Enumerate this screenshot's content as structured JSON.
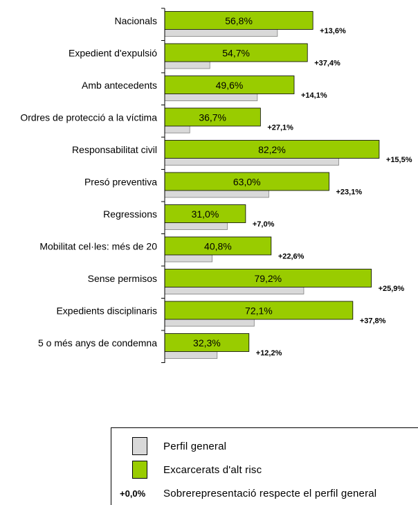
{
  "chart_data": {
    "type": "bar",
    "orientation": "horizontal",
    "categories": [
      "Nacionals",
      "Expedient d'expulsió",
      "Amb antecedents",
      "Ordres de protecció a la víctima",
      "Responsabilitat civil",
      "Presó preventiva",
      "Regressions",
      "Mobilitat cel·les: més de 20",
      "Sense permisos",
      "Expedients disciplinaris",
      "5 o més anys de condemna"
    ],
    "series": [
      {
        "name": "Excarcerats d'alt risc",
        "values": [
          56.8,
          54.7,
          49.6,
          36.7,
          82.2,
          63.0,
          31.0,
          40.8,
          79.2,
          72.1,
          32.3
        ],
        "labels": [
          "56,8%",
          "54,7%",
          "49,6%",
          "36,7%",
          "82,2%",
          "63,0%",
          "31,0%",
          "40,8%",
          "79,2%",
          "72,1%",
          "32,3%"
        ]
      },
      {
        "name": "Perfil general",
        "values": [
          43.2,
          17.3,
          35.5,
          9.6,
          66.7,
          39.9,
          24.0,
          18.2,
          53.3,
          34.3,
          20.1
        ]
      }
    ],
    "differences": [
      "+13,6%",
      "+37,4%",
      "+14,1%",
      "+27,1%",
      "+15,5%",
      "+23,1%",
      "+7,0%",
      "+22,6%",
      "+25,9%",
      "+37,8%",
      "+12,2%"
    ],
    "xlim": [
      0,
      100
    ],
    "grid": false,
    "colors": {
      "high_risk": "#99cc00",
      "general": "#d9d9d9",
      "outline": "#000000"
    }
  },
  "legend": {
    "general_label": "Perfil general",
    "high_risk_label": "Excarcerats d'alt risc",
    "diff_code": "+0,0%",
    "diff_label": "Sobrerepresentació respecte el perfil general"
  }
}
